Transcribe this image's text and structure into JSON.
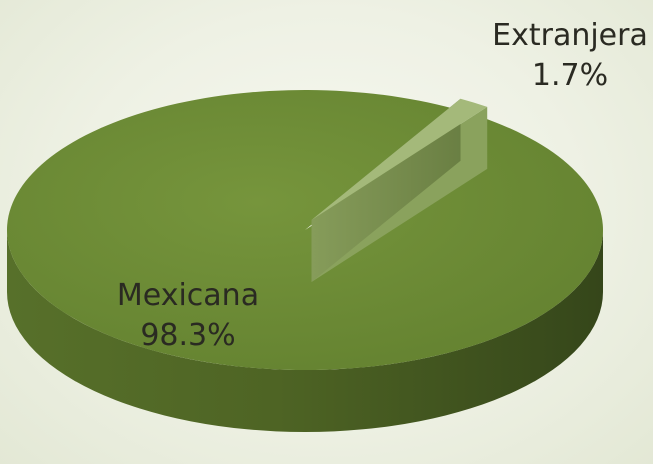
{
  "chart_data": {
    "type": "pie",
    "title": "",
    "slices": [
      {
        "label": "Mexicana",
        "value": 98.3,
        "display": "98.3%",
        "color": "#6d8a35"
      },
      {
        "label": "Extranjera",
        "value": 1.7,
        "display": "1.7%",
        "color": "#a4b97a"
      }
    ],
    "style": "3d-exploded",
    "exploded_slice": "Extranjera",
    "legend": "none"
  }
}
